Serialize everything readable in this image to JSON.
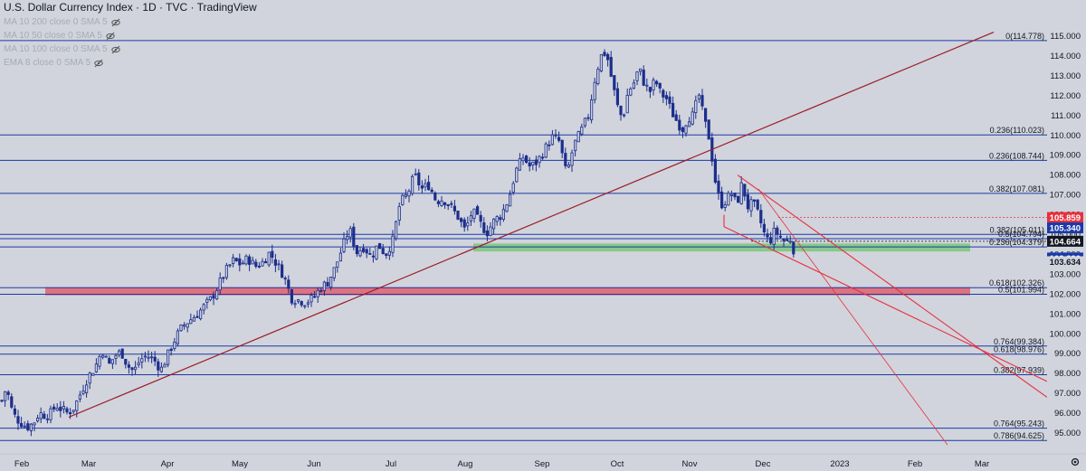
{
  "header": {
    "title": "U.S. Dollar Currency Index · 1D · TVC · TradingView",
    "indicators": [
      {
        "label": "MA 10 200 close 0 SMA 5"
      },
      {
        "label": "MA 10 50 close 0 SMA 5"
      },
      {
        "label": "MA 10 100 close 0 SMA 5"
      },
      {
        "label": "EMA 8 close 0 SMA 5"
      }
    ]
  },
  "colors": {
    "background": "#d1d4dc",
    "candle": "#1c2e8c",
    "trendline": "#9c1c28",
    "channel": "#e8303c",
    "fib_line": "#1a3aa8",
    "green_zone": "#7bc77b",
    "red_zone": "#e06070"
  },
  "chart_data": {
    "type": "candlestick",
    "title": "U.S. Dollar Currency Index · 1D · TVC · TradingView",
    "y_axis": {
      "range": [
        94.3,
        115.2
      ],
      "ticks": [
        95.0,
        96.0,
        97.0,
        98.0,
        99.0,
        100.0,
        101.0,
        102.0,
        103.0,
        104.0,
        105.0,
        106.0,
        107.0,
        108.0,
        109.0,
        110.0,
        111.0,
        112.0,
        113.0,
        114.0,
        115.0
      ]
    },
    "x_axis": {
      "ticks": [
        "Feb",
        "Mar",
        "Apr",
        "May",
        "Jun",
        "Jul",
        "Aug",
        "Sep",
        "Oct",
        "Nov",
        "Dec",
        "2023",
        "Feb",
        "Mar"
      ]
    },
    "price_path": [
      [
        1,
        96.5
      ],
      [
        7,
        97.3
      ],
      [
        14,
        96.0
      ],
      [
        21,
        95.6
      ],
      [
        30,
        95.3
      ],
      [
        37,
        95.5
      ],
      [
        43,
        96.0
      ],
      [
        50,
        95.9
      ],
      [
        56,
        96.0
      ],
      [
        62,
        96.4
      ],
      [
        68,
        96.2
      ],
      [
        75,
        96.0
      ],
      [
        82,
        96.3
      ],
      [
        90,
        97.1
      ],
      [
        97,
        97.8
      ],
      [
        105,
        98.3
      ],
      [
        113,
        99.2
      ],
      [
        120,
        98.4
      ],
      [
        127,
        98.9
      ],
      [
        134,
        99.1
      ],
      [
        141,
        98.4
      ],
      [
        148,
        98.1
      ],
      [
        155,
        98.7
      ],
      [
        162,
        98.9
      ],
      [
        170,
        98.7
      ],
      [
        178,
        98.2
      ],
      [
        186,
        99.0
      ],
      [
        194,
        99.8
      ],
      [
        202,
        100.4
      ],
      [
        210,
        100.7
      ],
      [
        218,
        101.0
      ],
      [
        226,
        101.4
      ],
      [
        234,
        101.8
      ],
      [
        242,
        102.5
      ],
      [
        250,
        103.2
      ],
      [
        258,
        103.7
      ],
      [
        266,
        103.5
      ],
      [
        274,
        103.8
      ],
      [
        282,
        103.4
      ],
      [
        290,
        103.6
      ],
      [
        298,
        104.1
      ],
      [
        306,
        103.5
      ],
      [
        314,
        102.9
      ],
      [
        322,
        101.8
      ],
      [
        330,
        101.7
      ],
      [
        338,
        101.6
      ],
      [
        346,
        101.8
      ],
      [
        354,
        102.3
      ],
      [
        362,
        102.6
      ],
      [
        370,
        103.3
      ],
      [
        378,
        104.3
      ],
      [
        386,
        105.3
      ],
      [
        394,
        104.1
      ],
      [
        402,
        104.4
      ],
      [
        410,
        103.9
      ],
      [
        418,
        104.5
      ],
      [
        426,
        104.0
      ],
      [
        434,
        104.7
      ],
      [
        442,
        106.6
      ],
      [
        450,
        107.0
      ],
      [
        458,
        108.0
      ],
      [
        466,
        107.3
      ],
      [
        474,
        107.5
      ],
      [
        482,
        106.7
      ],
      [
        490,
        106.8
      ],
      [
        498,
        106.4
      ],
      [
        506,
        105.9
      ],
      [
        514,
        105.2
      ],
      [
        522,
        106.2
      ],
      [
        530,
        105.6
      ],
      [
        538,
        105.1
      ],
      [
        546,
        105.7
      ],
      [
        554,
        106.0
      ],
      [
        562,
        106.8
      ],
      [
        570,
        108.2
      ],
      [
        578,
        108.9
      ],
      [
        586,
        108.4
      ],
      [
        594,
        108.7
      ],
      [
        602,
        109.3
      ],
      [
        610,
        109.9
      ],
      [
        618,
        109.7
      ],
      [
        626,
        108.0
      ],
      [
        634,
        109.5
      ],
      [
        642,
        110.2
      ],
      [
        650,
        111.0
      ],
      [
        658,
        113.0
      ],
      [
        664,
        114.0
      ],
      [
        670,
        114.2
      ],
      [
        676,
        112.8
      ],
      [
        682,
        111.5
      ],
      [
        688,
        110.8
      ],
      [
        694,
        112.2
      ],
      [
        700,
        112.6
      ],
      [
        706,
        113.4
      ],
      [
        712,
        112.6
      ],
      [
        718,
        112.2
      ],
      [
        724,
        112.8
      ],
      [
        730,
        112.1
      ],
      [
        736,
        111.9
      ],
      [
        742,
        111.2
      ],
      [
        748,
        110.7
      ],
      [
        754,
        110.3
      ],
      [
        760,
        110.9
      ],
      [
        766,
        111.0
      ],
      [
        772,
        112.1
      ],
      [
        778,
        110.8
      ],
      [
        784,
        109.8
      ],
      [
        790,
        107.8
      ],
      [
        796,
        106.5
      ],
      [
        802,
        106.7
      ],
      [
        808,
        107.1
      ],
      [
        814,
        106.5
      ],
      [
        820,
        107.6
      ],
      [
        826,
        106.4
      ],
      [
        832,
        106.6
      ],
      [
        838,
        106.0
      ],
      [
        844,
        105.1
      ],
      [
        850,
        104.6
      ],
      [
        856,
        105.2
      ],
      [
        862,
        104.9
      ],
      [
        868,
        104.6
      ],
      [
        874,
        104.8
      ],
      [
        880,
        103.65
      ]
    ],
    "hlines": [
      {
        "level": 114.778,
        "label": "0(114.778)"
      },
      {
        "level": 110.023,
        "label": "0.236(110.023)"
      },
      {
        "level": 108.744,
        "label": "0.236(108.744)"
      },
      {
        "level": 107.081,
        "label": "0.382(107.081)"
      },
      {
        "level": 105.011,
        "label": "0.382(105.011)"
      },
      {
        "level": 104.794,
        "label": "0.5(104.794)"
      },
      {
        "level": 104.379,
        "label": "0.236(104.379)"
      },
      {
        "level": 102.326,
        "label": "0.618(102.326)"
      },
      {
        "level": 101.994,
        "label": "0.5(101.994)"
      },
      {
        "level": 99.384,
        "label": "0.764(99.384)"
      },
      {
        "level": 98.976,
        "label": "0.618(98.976)"
      },
      {
        "level": 97.939,
        "label": "0.382(97.939)"
      },
      {
        "level": 95.243,
        "label": "0.764(95.243)"
      },
      {
        "level": 94.625,
        "label": "0.786(94.625)"
      }
    ],
    "zones": [
      {
        "type": "support",
        "from": 104.15,
        "to": 104.55,
        "color": "#7bc77b"
      },
      {
        "type": "resistance",
        "from": 101.94,
        "to": 102.35,
        "color": "#e06070"
      }
    ],
    "price_labels": [
      {
        "value": 105.859,
        "label": "105.859",
        "bg": "#e8303c",
        "fg": "#ffffff"
      },
      {
        "value": 105.34,
        "label": "105.340",
        "bg": "#1a3aa8",
        "fg": "#ffffff"
      },
      {
        "value": 104.664,
        "label": "104.664",
        "bg": "#131722",
        "fg": "#ffffff"
      },
      {
        "value": 103.82,
        "label": "103.820",
        "bg": "#1a3aa8",
        "fg": "#ffffff"
      },
      {
        "value": 103.634,
        "label": "103.634",
        "bg": "#d1d4dc",
        "fg": "#131722"
      }
    ]
  }
}
